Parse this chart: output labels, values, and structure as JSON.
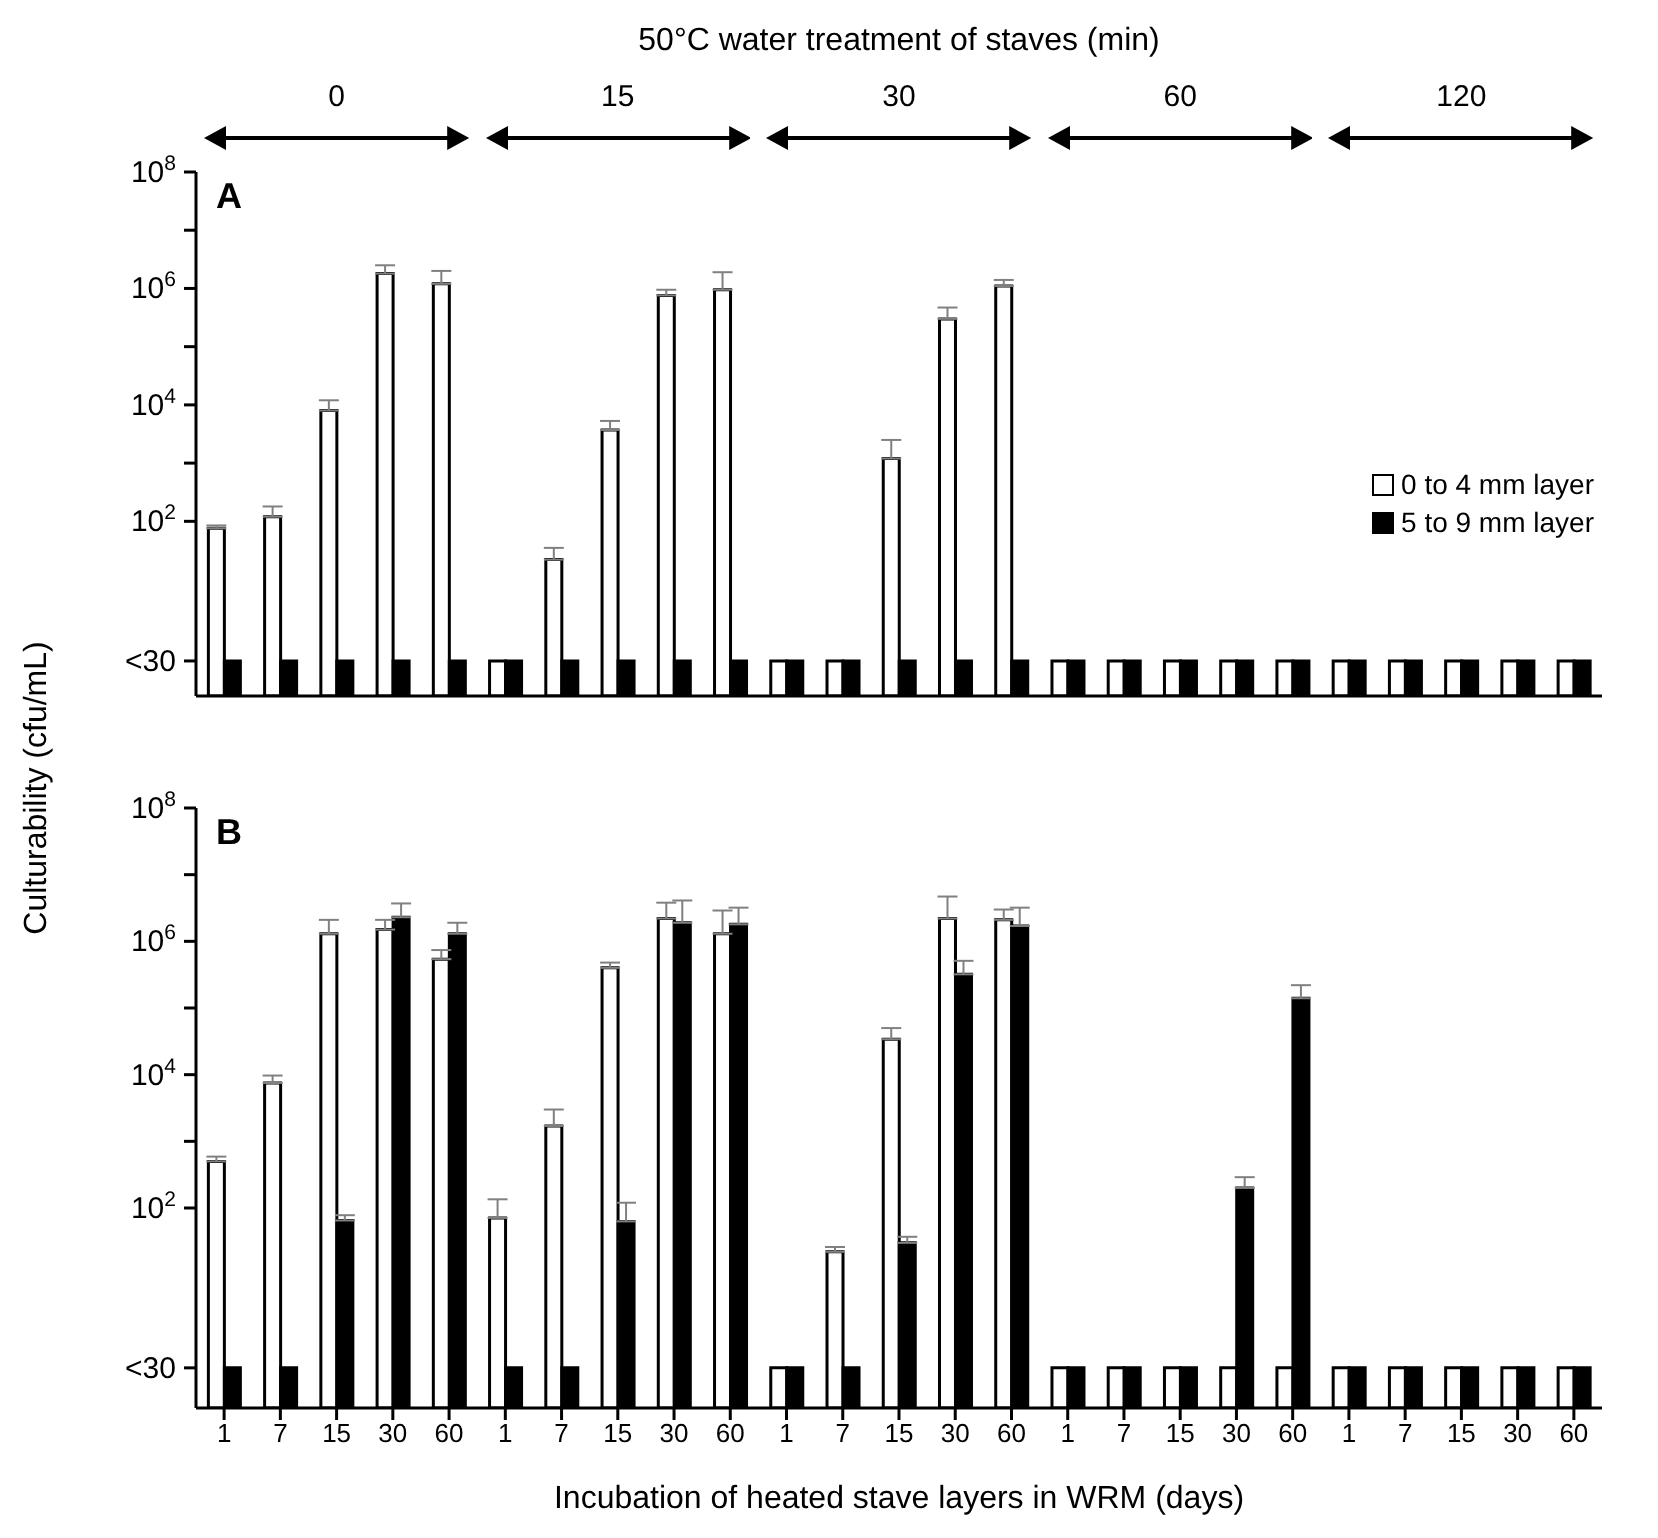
{
  "chart_data": [
    {
      "type": "bar",
      "title": "A",
      "ylabel": "Culturability (cfu/mL)",
      "x2label": "50°C water treatment of staves (min)",
      "annotations": [
        "0",
        "15",
        "30",
        "60",
        "120"
      ],
      "categories": [
        "1",
        "7",
        "15",
        "30",
        "60",
        "1",
        "7",
        "15",
        "30",
        "60",
        "1",
        "7",
        "15",
        "30",
        "60",
        "1",
        "7",
        "15",
        "30",
        "60",
        "1",
        "7",
        "15",
        "30",
        "60"
      ],
      "series": [
        {
          "name": "0 to 4 mm layer",
          "color": "#ffffff",
          "values": [
            76,
            120,
            8000,
            1800000,
            1200000,
            0.4,
            22,
            3700,
            760000,
            950000,
            0.4,
            0.4,
            1200,
            300000,
            1100000,
            0.4,
            0.4,
            0.4,
            0.4,
            0.4,
            0.4,
            0.4,
            0.4,
            0.4,
            0.4
          ],
          "errors": [
            [
              76,
              85
            ],
            [
              120,
              180
            ],
            [
              8000,
              12000
            ],
            [
              1800000,
              2500000
            ],
            [
              1200000,
              2000000
            ],
            null,
            [
              22,
              35
            ],
            [
              3700,
              5300
            ],
            [
              760000,
              950000
            ],
            [
              950000,
              1900000
            ],
            null,
            null,
            [
              1200,
              2500
            ],
            [
              300000,
              470000
            ],
            [
              1100000,
              1400000
            ],
            null,
            null,
            null,
            null,
            null,
            null,
            null,
            null,
            null,
            null
          ]
        },
        {
          "name": "5 to 9 mm layer",
          "color": "#000000",
          "values": [
            0.4,
            0.4,
            0.4,
            0.4,
            0.4,
            0.4,
            0.4,
            0.4,
            0.4,
            0.4,
            0.4,
            0.4,
            0.4,
            0.4,
            0.4,
            0.4,
            0.4,
            0.4,
            0.4,
            0.4,
            0.4,
            0.4,
            0.4,
            0.4,
            0.4
          ]
        }
      ],
      "log": "y",
      "ylim": [
        0.1,
        100000000
      ],
      "yticks": [
        {
          "value": 0.4,
          "label": "<30"
        },
        {
          "value": 100,
          "label": "10$^{2}$"
        },
        {
          "value": 1000,
          "label": null
        },
        {
          "value": 10000,
          "label": "10$^{4}$"
        },
        {
          "value": 100000,
          "label": null
        },
        {
          "value": 1000000,
          "label": "10$^{6}$"
        },
        {
          "value": 10000000,
          "label": null
        },
        {
          "value": 100000000,
          "label": "10$^{8}$"
        }
      ],
      "tick_labels": "y",
      "legend": "right"
    },
    {
      "type": "bar",
      "title": "B",
      "xlabel": "Incubation of heated stave layers in WRM (days)",
      "categories": [
        "1",
        "7",
        "15",
        "30",
        "60",
        "1",
        "7",
        "15",
        "30",
        "60",
        "1",
        "7",
        "15",
        "30",
        "60",
        "1",
        "7",
        "15",
        "30",
        "60",
        "1",
        "7",
        "15",
        "30",
        "60"
      ],
      "series": [
        {
          "color": "#ffffff",
          "values": [
            500,
            7500,
            1300000,
            1500000,
            540000,
            71,
            1700,
            400000,
            2200000,
            1300000,
            0.4,
            22,
            34000,
            2200000,
            2100000,
            0.4,
            0.4,
            0.4,
            0.4,
            0.4,
            0.4,
            0.4,
            0.4,
            0.4,
            0.4
          ],
          "errors": [
            [
              500,
              590
            ],
            [
              7500,
              9700
            ],
            [
              1300000,
              2100000
            ],
            [
              1500000,
              2100000
            ],
            [
              540000,
              740000
            ],
            [
              71,
              135
            ],
            [
              1700,
              3000
            ],
            [
              400000,
              480000
            ],
            [
              2200000,
              3800000
            ],
            [
              1300000,
              2900000
            ],
            null,
            [
              22,
              26
            ],
            [
              34000,
              50000
            ],
            [
              2200000,
              4700000
            ],
            [
              2100000,
              3000000
            ],
            null,
            null,
            null,
            null,
            null,
            null,
            null,
            null,
            null,
            null
          ]
        },
        {
          "color": "#000000",
          "values": [
            0.4,
            0.4,
            65,
            2300000,
            1300000,
            0.4,
            0.4,
            63,
            1900000,
            1800000,
            0.4,
            0.4,
            30,
            320000,
            1700000,
            0.4,
            0.4,
            0.4,
            200,
            140000,
            0.4,
            0.4,
            0.4,
            0.4,
            0.4
          ],
          "errors": [
            null,
            null,
            [
              65,
              78
            ],
            [
              2300000,
              3700000
            ],
            [
              1300000,
              1900000
            ],
            null,
            null,
            [
              63,
              120
            ],
            [
              1900000,
              4100000
            ],
            [
              1800000,
              3200000
            ],
            null,
            null,
            [
              30,
              37
            ],
            [
              320000,
              510000
            ],
            [
              1700000,
              3200000
            ],
            null,
            null,
            null,
            [
              200,
              290
            ],
            [
              140000,
              220000
            ],
            null,
            null,
            null,
            null,
            null
          ]
        }
      ],
      "log": "y",
      "ylim": [
        0.1,
        100000000
      ],
      "yticks": [
        {
          "value": 0.4,
          "label": "<30"
        },
        {
          "value": 100,
          "label": "10$^{2}$"
        },
        {
          "value": 1000,
          "label": null
        },
        {
          "value": 10000,
          "label": "10$^{4}$"
        },
        {
          "value": 100000,
          "label": null
        },
        {
          "value": 1000000,
          "label": "10$^{6}$"
        },
        {
          "value": 10000000,
          "label": null
        },
        {
          "value": 100000000,
          "label": "10$^{8}$"
        }
      ]
    }
  ]
}
